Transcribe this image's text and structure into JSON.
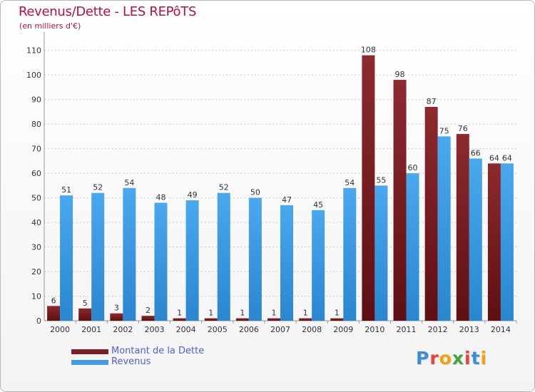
{
  "title": "Revenus/Dette - LES REPôTS",
  "subtitle": "(en milliers d'€)",
  "logo": {
    "text": "Proxiti",
    "colors": [
      "#3a8fd8",
      "#e8423c",
      "#f0a30a",
      "#3fa742",
      "#e8423c",
      "#3a8fd8",
      "#f0a30a"
    ]
  },
  "colors": {
    "title": "#b3123c",
    "dette": "#7a1f23",
    "revenus": "#3f9ee8",
    "axis": "#999999",
    "grid": "#cccccc"
  },
  "chart_data": {
    "type": "bar",
    "categories": [
      "2000",
      "2001",
      "2002",
      "2003",
      "2004",
      "2005",
      "2006",
      "2007",
      "2008",
      "2009",
      "2010",
      "2011",
      "2012",
      "2013",
      "2014"
    ],
    "series": [
      {
        "name": "Montant de la Dette",
        "values": [
          6,
          5,
          3,
          2,
          1,
          1,
          1,
          1,
          1,
          1,
          108,
          98,
          87,
          76,
          64
        ]
      },
      {
        "name": "Revenus",
        "values": [
          51,
          52,
          54,
          48,
          49,
          52,
          50,
          47,
          45,
          54,
          55,
          60,
          75,
          66,
          64
        ]
      }
    ],
    "yticks": [
      0,
      10,
      20,
      30,
      40,
      50,
      60,
      70,
      80,
      90,
      100,
      110
    ],
    "ylim": [
      0,
      116
    ],
    "grid": true,
    "legend_position": "bottom-left"
  }
}
